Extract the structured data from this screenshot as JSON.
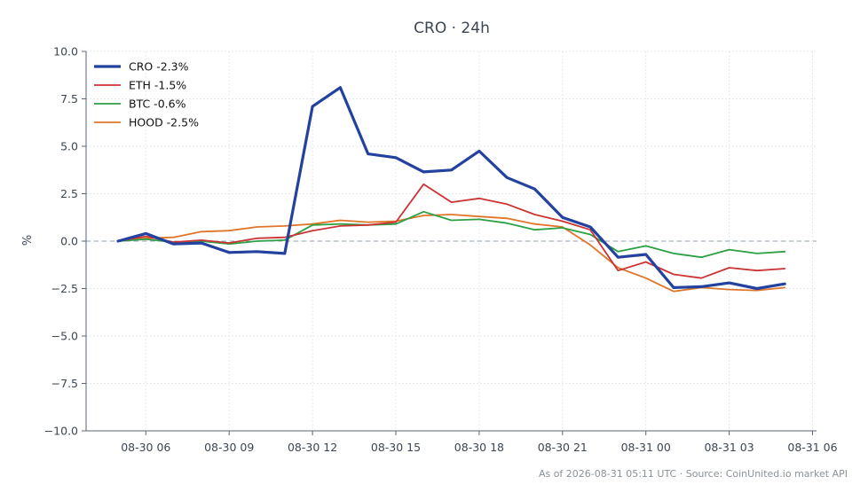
{
  "chart_data": {
    "type": "line",
    "title": "CRO · 24h",
    "xlabel": "",
    "ylabel": "%",
    "x": [
      "08-30 05",
      "08-30 06",
      "08-30 07",
      "08-30 08",
      "08-30 09",
      "08-30 10",
      "08-30 11",
      "08-30 12",
      "08-30 13",
      "08-30 14",
      "08-30 15",
      "08-30 16",
      "08-30 17",
      "08-30 18",
      "08-30 19",
      "08-30 20",
      "08-30 21",
      "08-30 22",
      "08-30 23",
      "08-31 00",
      "08-31 01",
      "08-31 02",
      "08-31 03",
      "08-31 04",
      "08-31 05"
    ],
    "x_ticks": [
      "08-30 06",
      "08-30 09",
      "08-30 12",
      "08-30 15",
      "08-30 18",
      "08-30 21",
      "08-31 00",
      "08-31 03",
      "08-31 06"
    ],
    "ylim": [
      -10,
      10
    ],
    "y_ticks": [
      "10.0",
      "7.5",
      "5.0",
      "2.5",
      "0.0",
      "−2.5",
      "−5.0",
      "−7.5",
      "−10.0"
    ],
    "y_tick_values": [
      10,
      7.5,
      5,
      2.5,
      0,
      -2.5,
      -5,
      -7.5,
      -10
    ],
    "grid": true,
    "zero_line": true,
    "legend_position": "top-left",
    "series": [
      {
        "name": "CRO -2.3%",
        "color": "#2342a0",
        "width": 3.2,
        "values": [
          0.0,
          0.4,
          -0.15,
          -0.1,
          -0.6,
          -0.55,
          -0.65,
          7.1,
          8.1,
          4.6,
          4.4,
          3.65,
          3.75,
          4.75,
          3.35,
          2.75,
          1.25,
          0.75,
          -0.85,
          -0.7,
          -2.45,
          -2.4,
          -2.2,
          -2.5,
          -2.25
        ]
      },
      {
        "name": "ETH -1.5%",
        "color": "#cc3333",
        "width": 1.8,
        "values": [
          0.0,
          0.25,
          -0.05,
          0.05,
          -0.1,
          0.15,
          0.2,
          0.55,
          0.8,
          0.85,
          1.0,
          3.0,
          2.05,
          2.25,
          1.95,
          1.4,
          1.05,
          0.6,
          -1.55,
          -1.1,
          -1.75,
          -1.95,
          -1.4,
          -1.55,
          -1.45
        ]
      },
      {
        "name": "BTC -0.6%",
        "color": "#2ca044",
        "width": 1.8,
        "values": [
          0.0,
          0.1,
          -0.05,
          0.0,
          -0.15,
          0.0,
          0.05,
          0.85,
          0.9,
          0.85,
          0.9,
          1.55,
          1.1,
          1.15,
          0.95,
          0.6,
          0.7,
          0.35,
          -0.55,
          -0.25,
          -0.65,
          -0.85,
          -0.45,
          -0.65,
          -0.55
        ]
      },
      {
        "name": "HOOD -2.5%",
        "color": "#e0752a",
        "width": 1.8,
        "values": [
          0.0,
          0.15,
          0.2,
          0.5,
          0.55,
          0.75,
          0.8,
          0.9,
          1.1,
          1.0,
          1.05,
          1.35,
          1.4,
          1.3,
          1.2,
          0.9,
          0.75,
          -0.2,
          -1.4,
          -1.95,
          -2.65,
          -2.45,
          -2.55,
          -2.6,
          -2.45
        ]
      }
    ],
    "footer": "As of 2026-08-31 05:11 UTC · Source: CoinUnited.io market API"
  }
}
